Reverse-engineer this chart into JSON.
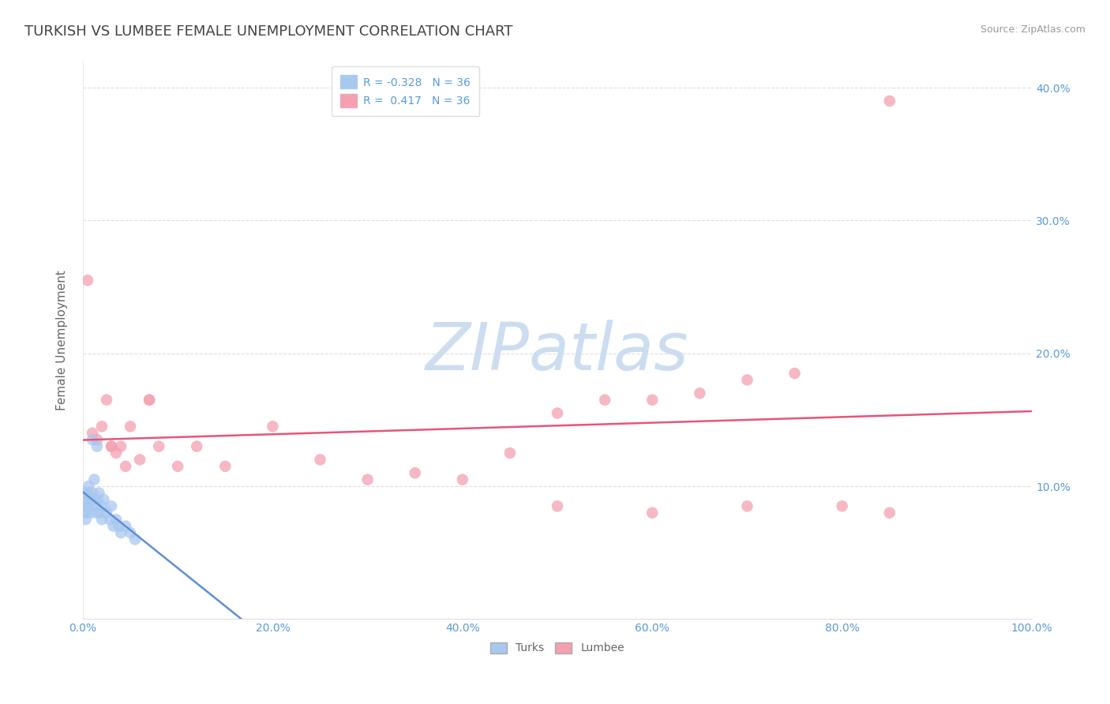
{
  "title": "TURKISH VS LUMBEE FEMALE UNEMPLOYMENT CORRELATION CHART",
  "source": "Source: ZipAtlas.com",
  "ylabel": "Female Unemployment",
  "watermark": "ZIPatlas",
  "turks_x": [
    0.1,
    0.15,
    0.2,
    0.25,
    0.3,
    0.35,
    0.4,
    0.5,
    0.5,
    0.6,
    0.7,
    0.8,
    0.9,
    1.0,
    1.1,
    1.2,
    1.3,
    1.5,
    1.5,
    1.7,
    1.8,
    2.0,
    2.2,
    2.5,
    2.8,
    3.0,
    3.2,
    3.5,
    3.8,
    4.0,
    4.5,
    5.0,
    5.5,
    1.0,
    1.5,
    2.0
  ],
  "turks_y": [
    8.5,
    9.0,
    8.0,
    9.5,
    7.5,
    8.0,
    9.0,
    9.5,
    8.5,
    10.0,
    8.5,
    9.0,
    8.0,
    9.5,
    9.0,
    10.5,
    8.5,
    9.0,
    8.0,
    9.5,
    8.0,
    8.5,
    9.0,
    8.0,
    7.5,
    8.5,
    7.0,
    7.5,
    7.0,
    6.5,
    7.0,
    6.5,
    6.0,
    13.5,
    13.0,
    7.5
  ],
  "lumbee_x": [
    0.5,
    1.0,
    1.5,
    2.0,
    2.5,
    3.0,
    3.5,
    4.0,
    5.0,
    6.0,
    7.0,
    8.0,
    10.0,
    12.0,
    15.0,
    20.0,
    25.0,
    30.0,
    35.0,
    40.0,
    45.0,
    50.0,
    55.0,
    60.0,
    65.0,
    70.0,
    75.0,
    80.0,
    85.0,
    3.0,
    4.5,
    7.0,
    50.0,
    60.0,
    70.0,
    85.0
  ],
  "lumbee_y": [
    25.5,
    14.0,
    13.5,
    14.5,
    16.5,
    13.0,
    12.5,
    13.0,
    14.5,
    12.0,
    16.5,
    13.0,
    11.5,
    13.0,
    11.5,
    14.5,
    12.0,
    10.5,
    11.0,
    10.5,
    12.5,
    8.5,
    16.5,
    16.5,
    17.0,
    18.0,
    18.5,
    8.5,
    39.0,
    13.0,
    11.5,
    16.5,
    15.5,
    8.0,
    8.5,
    8.0
  ],
  "turks_color": "#a8c8f0",
  "lumbee_color": "#f4a0b0",
  "turks_line_color": "#6090d0",
  "lumbee_line_color": "#e8547a",
  "turks_line_x": [
    0,
    20
  ],
  "lumbee_line_x": [
    0,
    100
  ],
  "r_turks": -0.328,
  "r_lumbee": 0.417,
  "n_turks": 36,
  "n_lumbee": 36,
  "xlim": [
    0,
    100
  ],
  "ylim": [
    0,
    42
  ],
  "xticks": [
    0,
    20,
    40,
    60,
    80,
    100
  ],
  "xtick_labels": [
    "0.0%",
    "20.0%",
    "40.0%",
    "60.0%",
    "80.0%",
    "100.0%"
  ],
  "ytick_positions": [
    10,
    20,
    30,
    40
  ],
  "ytick_labels": [
    "10.0%",
    "20.0%",
    "30.0%",
    "40.0%"
  ],
  "grid_color": "#d0d0d0",
  "bg_color": "#ffffff",
  "title_color": "#444444",
  "axis_label_color": "#666666",
  "tick_color": "#5b9bd5",
  "source_color": "#999999",
  "watermark_color": "#ccddf0",
  "watermark_fontsize": 60,
  "title_fontsize": 13,
  "axis_label_fontsize": 11,
  "tick_fontsize": 10,
  "legend_fontsize": 10,
  "marker_size": 110
}
